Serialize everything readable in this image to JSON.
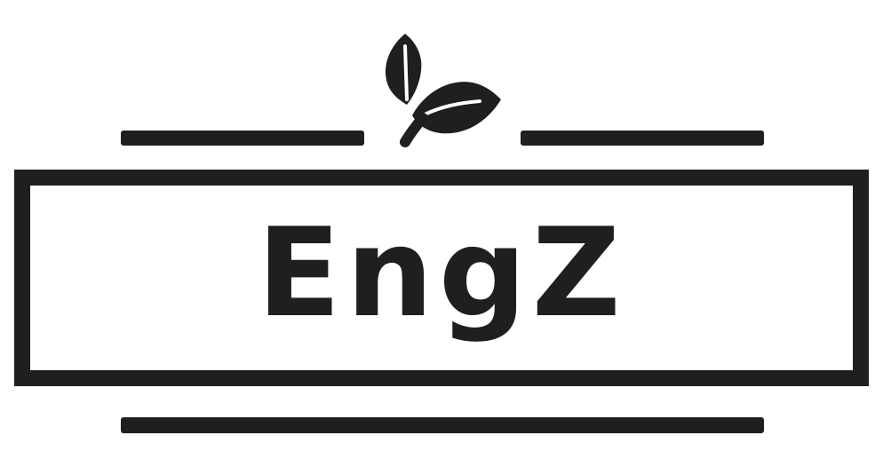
{
  "logo": {
    "brand_name": "EngZ",
    "emblem_icon": "leaf-sprout-icon"
  },
  "colors": {
    "background": "#ffffff",
    "ink": "#1f1f1f"
  }
}
